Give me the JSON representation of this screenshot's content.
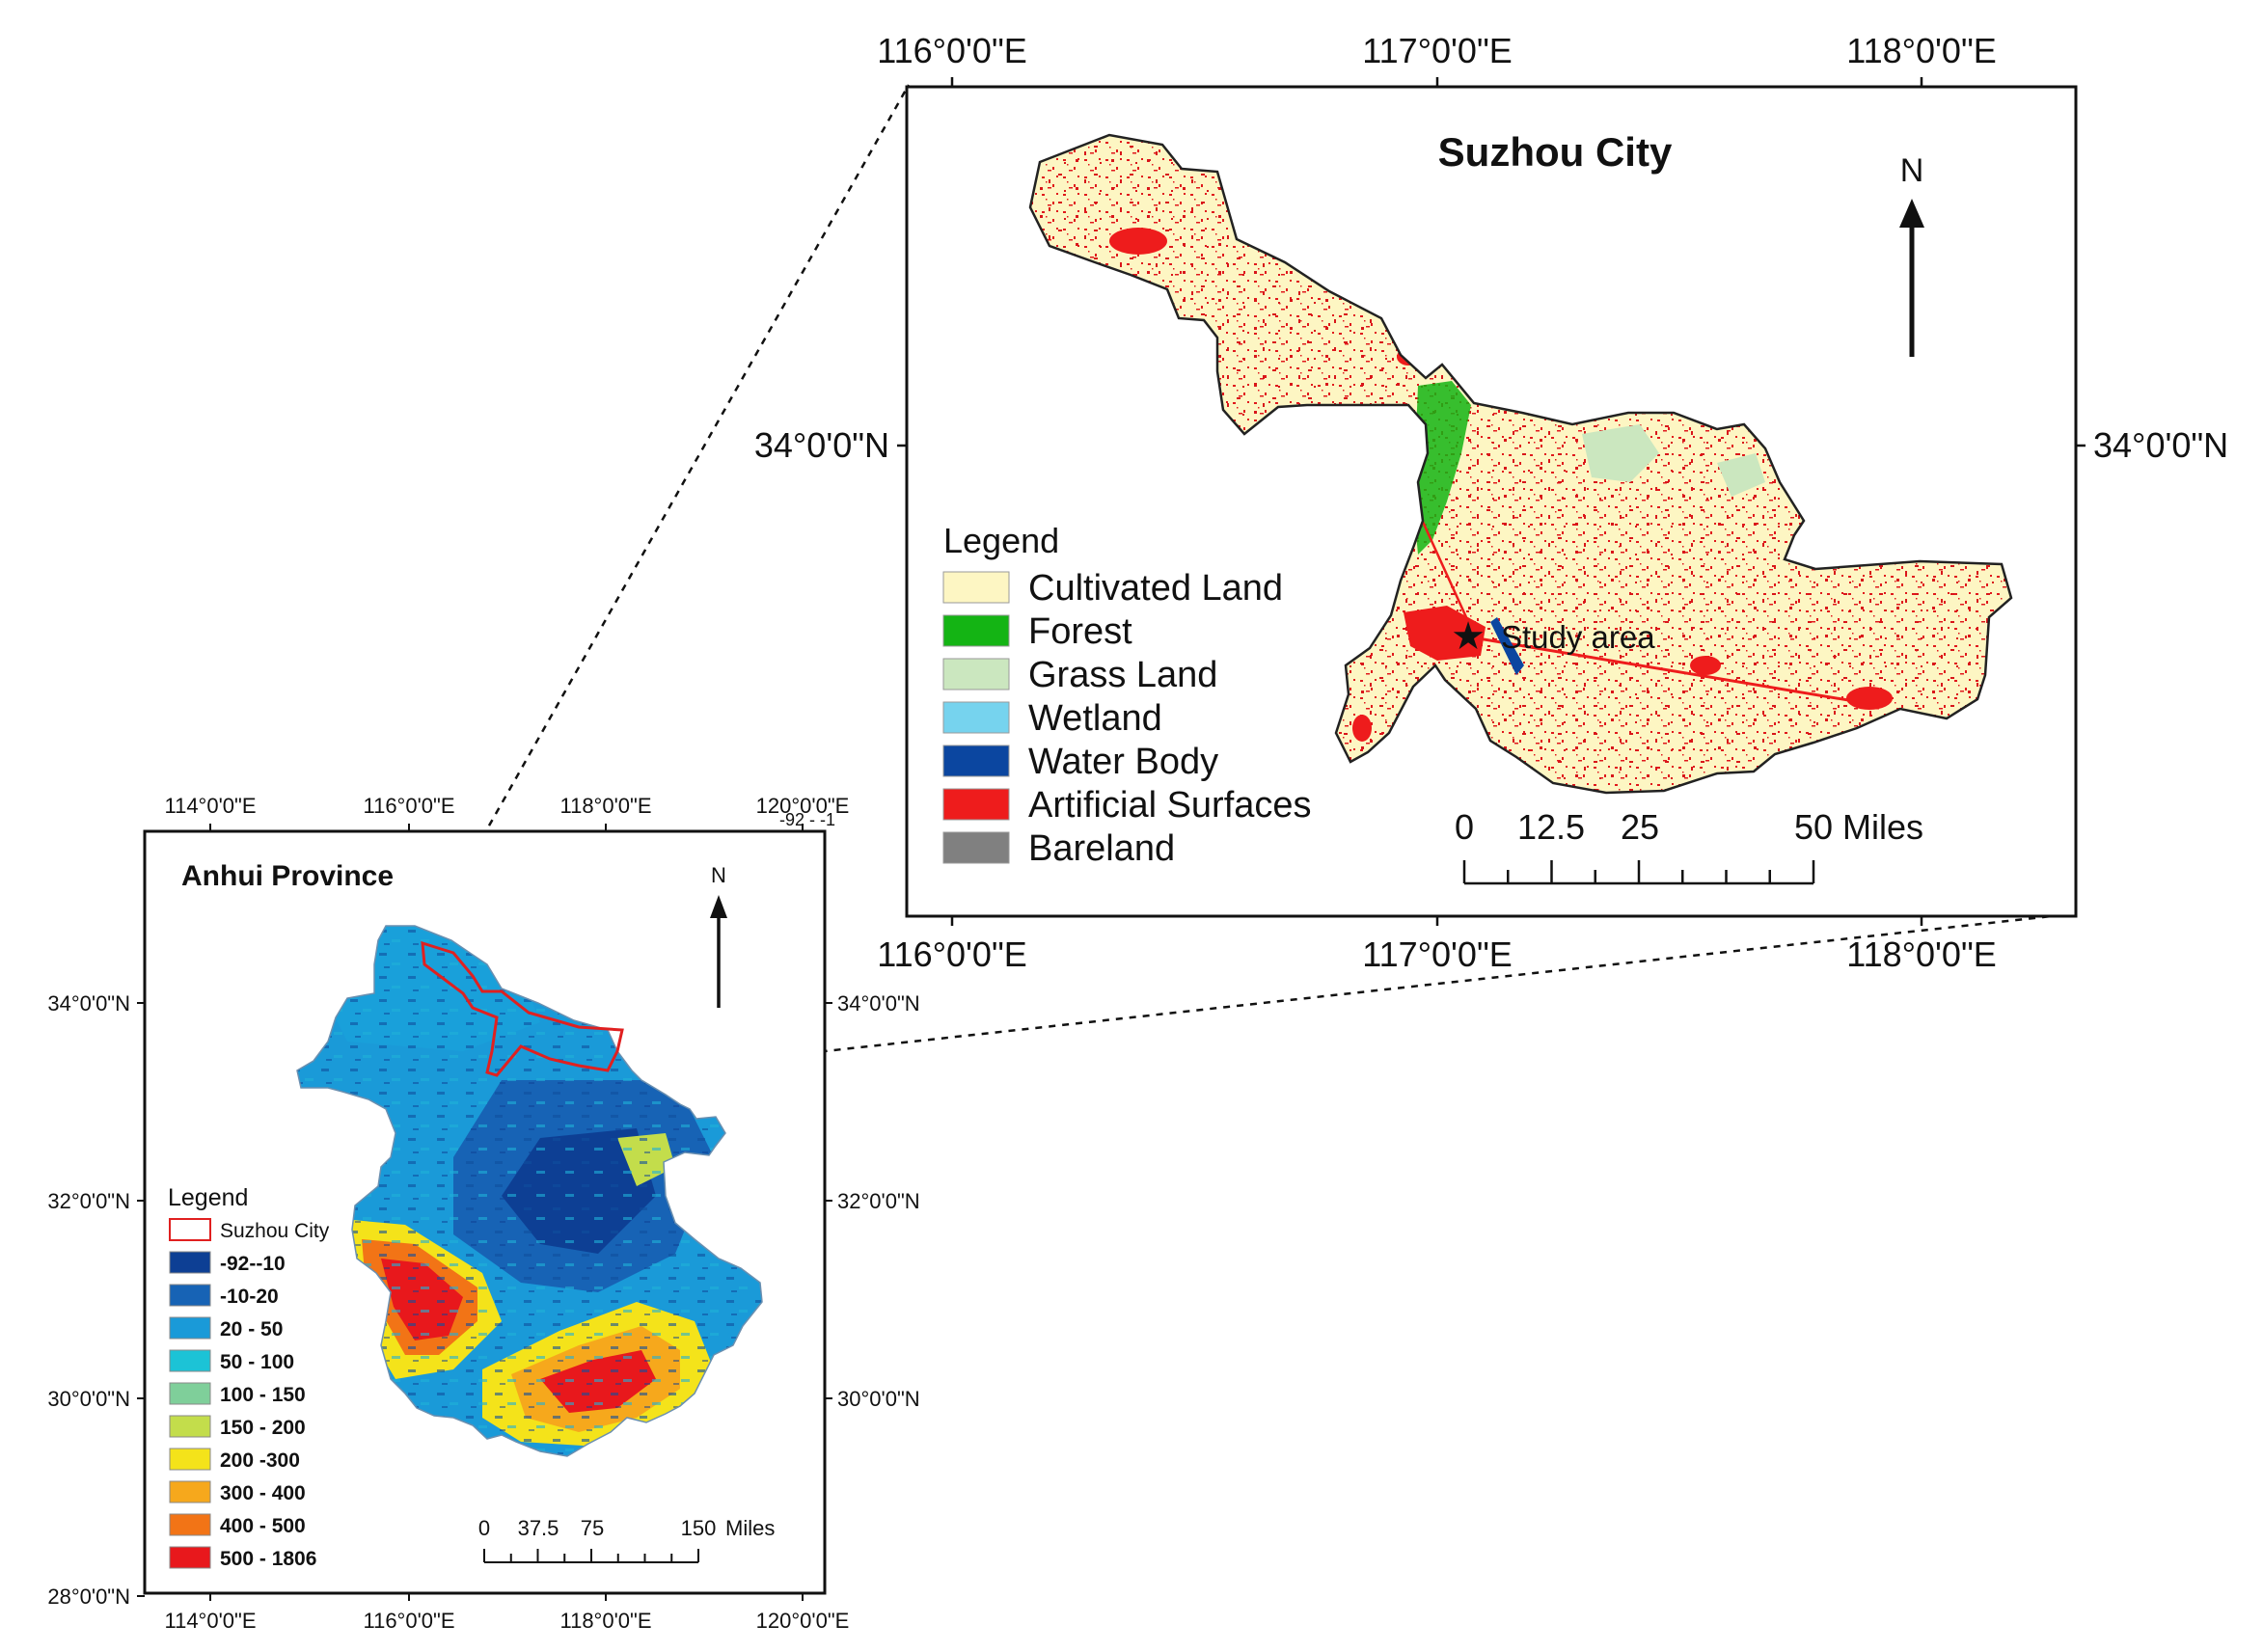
{
  "anhui": {
    "title": "Anhui Province",
    "north": "N",
    "stray_label": "-92 - -1",
    "lon_labels": [
      "114°0'0\"E",
      "116°0'0\"E",
      "118°0'0\"E",
      "120°0'0\"E"
    ],
    "lat_labels": [
      "34°0'0\"N",
      "32°0'0\"N",
      "30°0'0\"N",
      "28°0'0\"N"
    ],
    "lat_labels_right": [
      "34°0'0\"N",
      "32°0'0\"N",
      "30°0'0\"N"
    ],
    "legend_title": "Legend",
    "legend": [
      {
        "label": "Suzhou City",
        "color": "#ffffff",
        "outline": "#e02020"
      },
      {
        "label": "-92--10",
        "color": "#0d3f94"
      },
      {
        "label": "-10-20",
        "color": "#1763b5"
      },
      {
        "label": "20 - 50",
        "color": "#1a9ad8"
      },
      {
        "label": "50 - 100",
        "color": "#1cc3d6"
      },
      {
        "label": "100 - 150",
        "color": "#7fcf9a"
      },
      {
        "label": "150 - 200",
        "color": "#c3dd4b"
      },
      {
        "label": "200 -300",
        "color": "#f4e31a"
      },
      {
        "label": "300 - 400",
        "color": "#f6a81c"
      },
      {
        "label": "400 - 500",
        "color": "#f27416"
      },
      {
        "label": "500 - 1806",
        "color": "#e8181c"
      }
    ],
    "scale_labels": [
      "0",
      "37.5",
      "75",
      "150"
    ],
    "scale_unit": "Miles"
  },
  "suzhou": {
    "title": "Suzhou City",
    "north": "N",
    "lon_labels": [
      "116°0'0\"E",
      "117°0'0\"E",
      "118°0'0\"E"
    ],
    "lat_label": "34°0'0\"N",
    "legend_title": "Legend",
    "legend": [
      {
        "label": "Cultivated Land",
        "color": "#fdf6c3"
      },
      {
        "label": "Forest",
        "color": "#14b414"
      },
      {
        "label": "Grass Land",
        "color": "#cbe7bf"
      },
      {
        "label": "Wetland",
        "color": "#76d3ee"
      },
      {
        "label": "Water Body",
        "color": "#0b46a0"
      },
      {
        "label": "Artificial Surfaces",
        "color": "#ee1c1c"
      },
      {
        "label": "Bareland",
        "color": "#808080"
      }
    ],
    "study_area": "Study area",
    "scale_labels": [
      "0",
      "12.5",
      "25",
      "50"
    ],
    "scale_unit": "Miles"
  }
}
